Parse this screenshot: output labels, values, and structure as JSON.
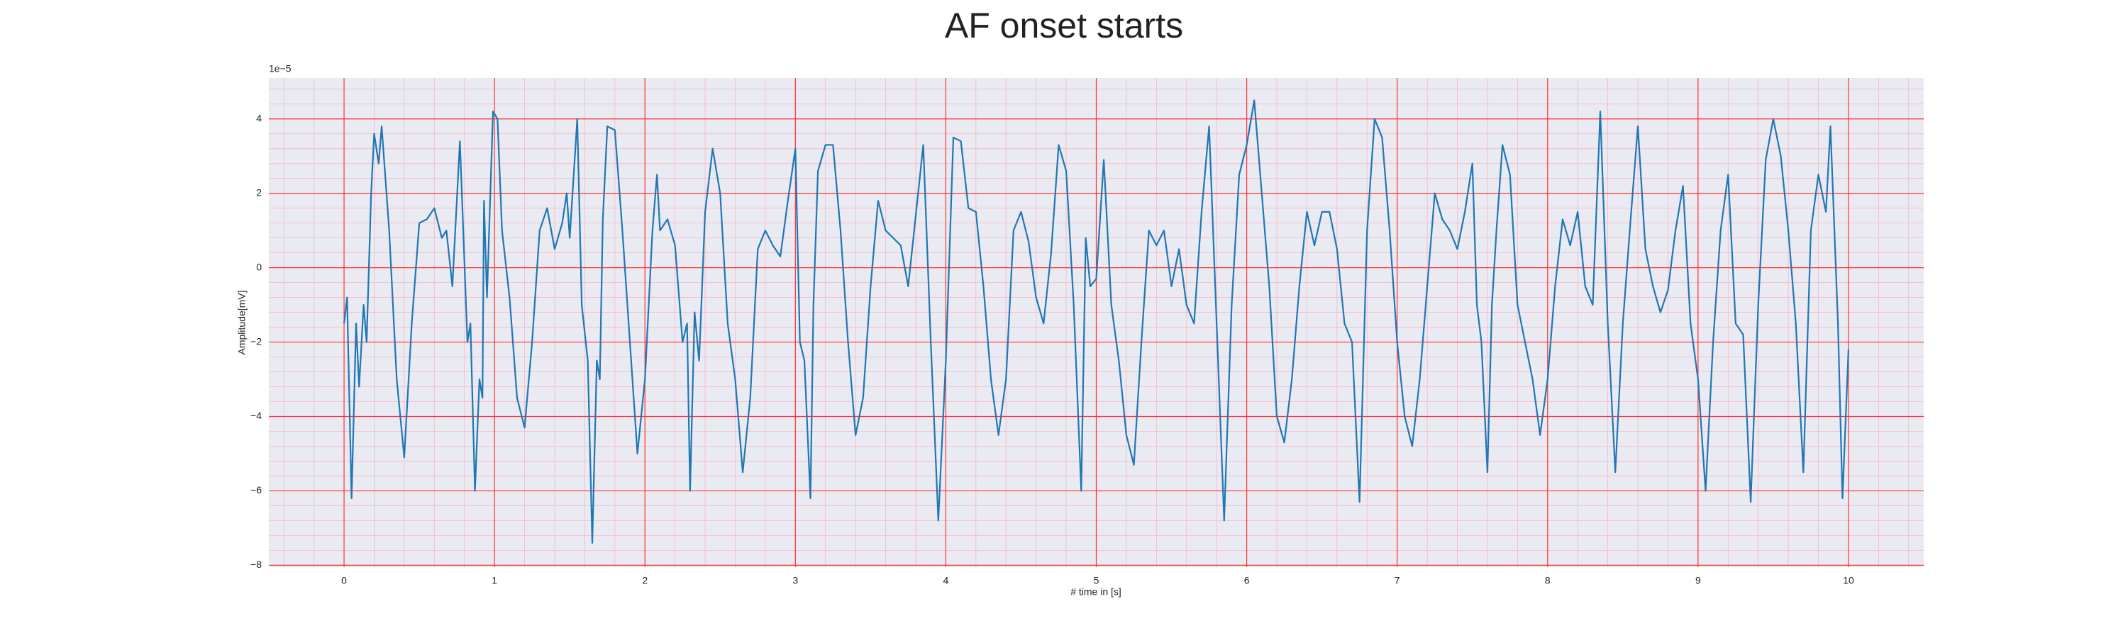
{
  "chart_data": {
    "type": "line",
    "title": "AF onset starts",
    "xlabel": "# time in [s]",
    "ylabel": "Amplitude[mV]",
    "y_offset_label": "1e−5",
    "color": "#1f77b4",
    "background": "#eaeaf2",
    "grid": true,
    "grid_color": "#ff3333",
    "minor_grid": {
      "x_step": 0.2,
      "y_step": 0.4,
      "color": "#f4b8c4"
    },
    "xlim": [
      -0.5,
      10.5
    ],
    "ylim": [
      -8.05,
      5.1
    ],
    "xticks": [
      0,
      1,
      2,
      3,
      4,
      5,
      6,
      7,
      8,
      9,
      10
    ],
    "yticks": [
      {
        "value": -8,
        "label": "−8"
      },
      {
        "value": -6,
        "label": "−6"
      },
      {
        "value": -4,
        "label": "−4"
      },
      {
        "value": -2,
        "label": "−2"
      },
      0,
      2,
      4
    ],
    "x": [
      0,
      0.02,
      0.05,
      0.08,
      0.1,
      0.13,
      0.15,
      0.18,
      0.2,
      0.23,
      0.25,
      0.3,
      0.35,
      0.4,
      0.45,
      0.5,
      0.55,
      0.6,
      0.65,
      0.68,
      0.72,
      0.77,
      0.82,
      0.84,
      0.87,
      0.9,
      0.92,
      0.93,
      0.95,
      0.99,
      1.02,
      1.05,
      1.1,
      1.15,
      1.2,
      1.25,
      1.3,
      1.35,
      1.4,
      1.45,
      1.48,
      1.5,
      1.55,
      1.58,
      1.62,
      1.65,
      1.68,
      1.7,
      1.72,
      1.75,
      1.8,
      1.85,
      1.9,
      1.95,
      2,
      2.05,
      2.08,
      2.1,
      2.15,
      2.2,
      2.25,
      2.28,
      2.3,
      2.33,
      2.36,
      2.4,
      2.45,
      2.5,
      2.55,
      2.6,
      2.65,
      2.7,
      2.75,
      2.8,
      2.85,
      2.9,
      2.95,
      3,
      3.03,
      3.06,
      3.1,
      3.12,
      3.15,
      3.2,
      3.25,
      3.3,
      3.35,
      3.4,
      3.45,
      3.5,
      3.55,
      3.6,
      3.65,
      3.7,
      3.75,
      3.8,
      3.85,
      3.9,
      3.95,
      4,
      4.05,
      4.1,
      4.15,
      4.2,
      4.25,
      4.3,
      4.35,
      4.4,
      4.45,
      4.5,
      4.55,
      4.6,
      4.65,
      4.7,
      4.75,
      4.8,
      4.85,
      4.9,
      4.93,
      4.96,
      5,
      5.05,
      5.1,
      5.15,
      5.2,
      5.25,
      5.3,
      5.35,
      5.4,
      5.45,
      5.5,
      5.55,
      5.6,
      5.65,
      5.7,
      5.75,
      5.8,
      5.85,
      5.9,
      5.95,
      6,
      6.05,
      6.1,
      6.15,
      6.2,
      6.25,
      6.3,
      6.35,
      6.4,
      6.45,
      6.5,
      6.55,
      6.6,
      6.65,
      6.7,
      6.75,
      6.8,
      6.85,
      6.9,
      6.95,
      7,
      7.05,
      7.1,
      7.15,
      7.2,
      7.25,
      7.3,
      7.35,
      7.4,
      7.45,
      7.5,
      7.53,
      7.56,
      7.6,
      7.63,
      7.66,
      7.7,
      7.75,
      7.8,
      7.85,
      7.9,
      7.95,
      8,
      8.05,
      8.1,
      8.15,
      8.2,
      8.25,
      8.3,
      8.35,
      8.4,
      8.45,
      8.5,
      8.55,
      8.6,
      8.65,
      8.7,
      8.75,
      8.8,
      8.85,
      8.9,
      8.95,
      9,
      9.05,
      9.1,
      9.15,
      9.2,
      9.25,
      9.3,
      9.35,
      9.4,
      9.45,
      9.5,
      9.55,
      9.6,
      9.65,
      9.7,
      9.75,
      9.8,
      9.85,
      9.88,
      9.93,
      9.96,
      10
    ],
    "values": [
      -1.5,
      -0.8,
      -6.2,
      -1.5,
      -3.2,
      -1,
      -2,
      2,
      3.6,
      2.8,
      3.8,
      1,
      -3,
      -5.1,
      -1.5,
      1.2,
      1.3,
      1.6,
      0.8,
      1,
      -0.5,
      3.4,
      -2,
      -1.5,
      -6,
      -3,
      -3.5,
      1.8,
      -0.8,
      4.2,
      4,
      1,
      -0.8,
      -3.5,
      -4.3,
      -2,
      1,
      1.6,
      0.5,
      1.2,
      2,
      0.8,
      4,
      -1,
      -2.5,
      -7.4,
      -2.5,
      -3,
      1.3,
      3.8,
      3.7,
      1,
      -2,
      -5,
      -3,
      1,
      2.5,
      1,
      1.3,
      0.6,
      -2,
      -1.5,
      -6,
      -1.2,
      -2.5,
      1.5,
      3.2,
      2,
      -1.5,
      -3,
      -5.5,
      -3.5,
      0.5,
      1,
      0.6,
      0.3,
      1.8,
      3.2,
      -2,
      -2.5,
      -6.2,
      -1,
      2.6,
      3.3,
      3.3,
      1,
      -2,
      -4.5,
      -3.5,
      -0.5,
      1.8,
      1,
      0.8,
      0.6,
      -0.5,
      1.4,
      3.3,
      -2,
      -6.8,
      -2.5,
      3.5,
      3.4,
      1.6,
      1.5,
      -0.5,
      -3,
      -4.5,
      -3,
      1,
      1.5,
      0.7,
      -0.8,
      -1.5,
      0.4,
      3.3,
      2.6,
      -1,
      -6,
      0.8,
      -0.5,
      -0.3,
      2.9,
      -1,
      -2.5,
      -4.5,
      -5.3,
      -2,
      1,
      0.6,
      1,
      -0.5,
      0.5,
      -1,
      -1.5,
      1.5,
      3.8,
      -1.5,
      -6.8,
      -1,
      2.5,
      3.3,
      4.5,
      2,
      -0.5,
      -4,
      -4.7,
      -3,
      -0.5,
      1.5,
      0.6,
      1.5,
      1.5,
      0.5,
      -1.5,
      -2,
      -6.3,
      1,
      4,
      3.5,
      1,
      -2,
      -4,
      -4.8,
      -3,
      -0.5,
      2,
      1.3,
      1,
      0.5,
      1.5,
      2.8,
      -1,
      -2,
      -5.5,
      -1,
      1,
      3.3,
      2.5,
      -1,
      -2,
      -3,
      -4.5,
      -3,
      -0.5,
      1.3,
      0.6,
      1.5,
      -0.5,
      -1,
      4.2,
      -1.5,
      -5.5,
      -1.5,
      1.2,
      3.8,
      0.5,
      -0.5,
      -1.2,
      -0.6,
      1,
      2.2,
      -1.5,
      -3,
      -6,
      -2,
      1,
      2.5,
      -1.5,
      -1.8,
      -6.3,
      -1,
      2.9,
      4,
      3,
      1,
      -1.5,
      -5.5,
      1,
      2.5,
      1.5,
      3.8,
      -1.5,
      -6.2,
      -2.2
    ]
  }
}
